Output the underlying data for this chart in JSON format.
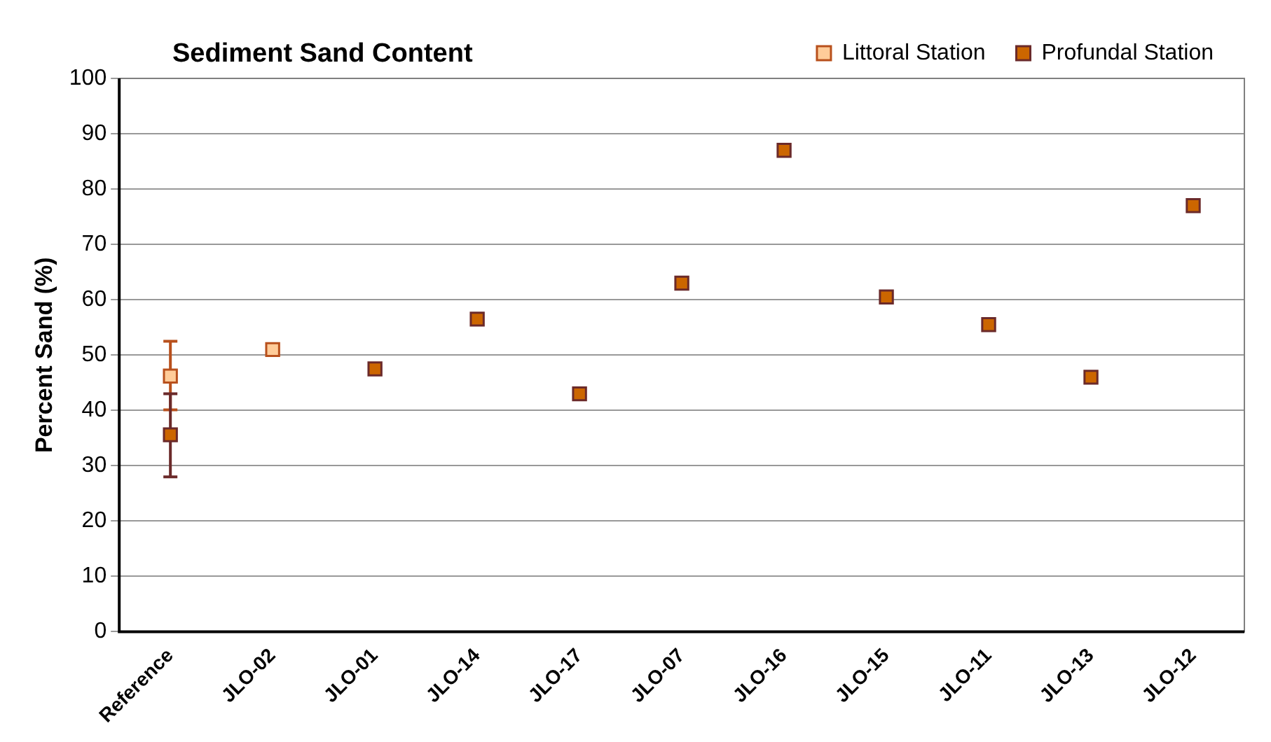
{
  "chart_data": {
    "type": "scatter",
    "title": "Sediment Sand Content",
    "ylabel": "Percent Sand (%)",
    "categories": [
      "Reference",
      "JLO-02",
      "JLO-01",
      "JLO-14",
      "JLO-17",
      "JLO-07",
      "JLO-16",
      "JLO-15",
      "JLO-11",
      "JLO-13",
      "JLO-12"
    ],
    "series": [
      {
        "name": "Littoral Station",
        "color": "#ffcc99",
        "values": [
          46.2,
          51,
          null,
          null,
          null,
          null,
          null,
          null,
          null,
          null,
          null
        ],
        "errors": [
          [
            40.1,
            52.5
          ],
          null,
          null,
          null,
          null,
          null,
          null,
          null,
          null,
          null,
          null
        ]
      },
      {
        "name": "Profundal Station",
        "color": "#cc6600",
        "values": [
          35.6,
          null,
          47.5,
          56.5,
          43,
          63,
          87,
          60.5,
          55.5,
          46,
          77
        ],
        "errors": [
          [
            28,
            43
          ],
          null,
          null,
          null,
          null,
          null,
          null,
          null,
          null,
          null,
          null
        ]
      }
    ],
    "ylim": [
      0,
      100
    ],
    "yticks": [
      0,
      10,
      20,
      30,
      40,
      50,
      60,
      70,
      80,
      90,
      100
    ],
    "grid": "y",
    "legend": "top right",
    "marker": "square"
  }
}
